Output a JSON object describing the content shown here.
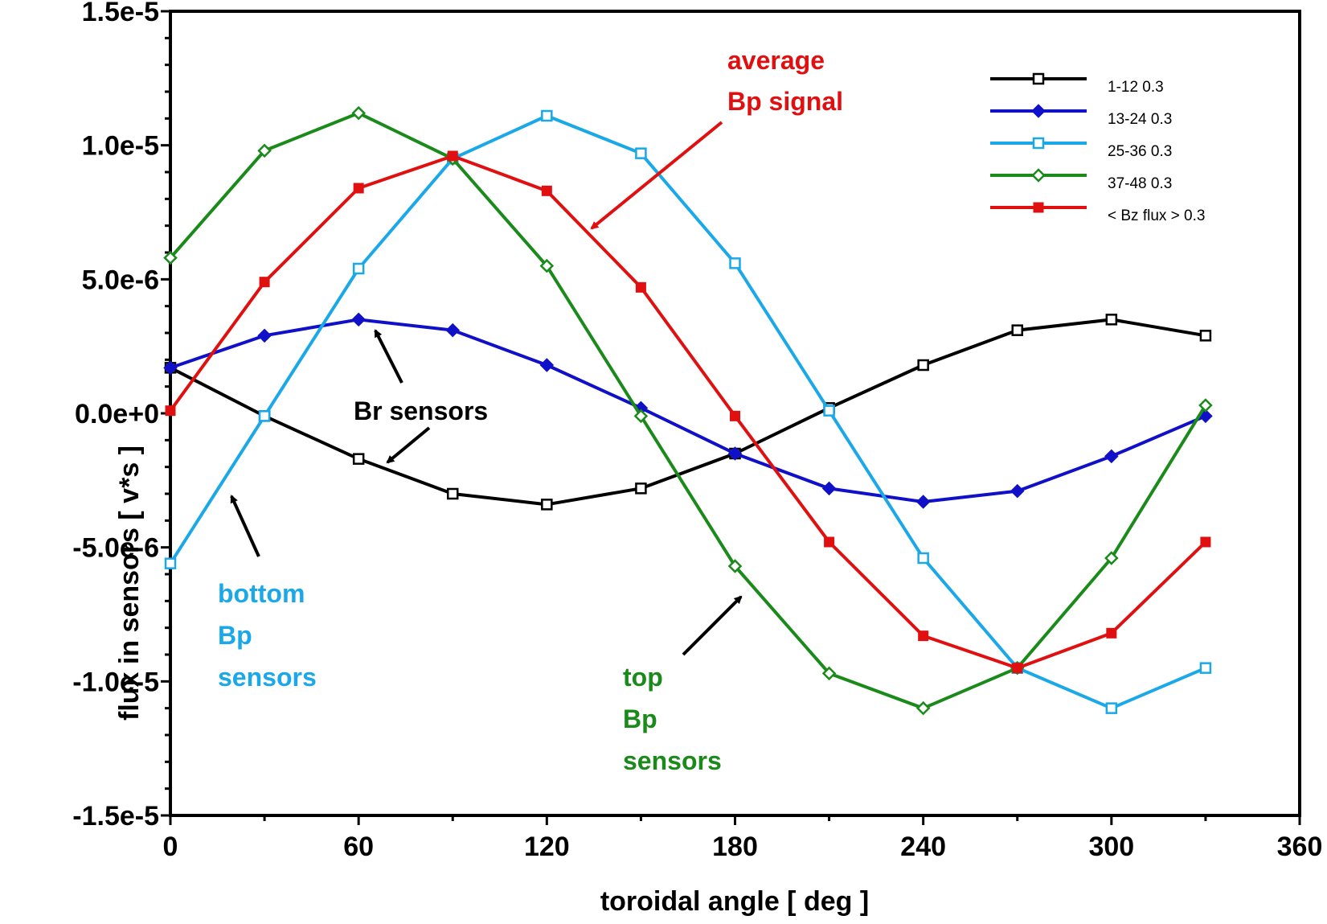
{
  "chart_data": {
    "type": "line",
    "xlabel": "toroidal angle  [ deg ]",
    "ylabel": "flux in sensors  [ v*s ]",
    "xlim": [
      0,
      360
    ],
    "ylim": [
      -1.5e-05,
      1.5e-05
    ],
    "x_ticks": [
      0,
      60,
      120,
      180,
      240,
      300,
      360
    ],
    "x_tick_labels": [
      "0",
      "60",
      "120",
      "180",
      "240",
      "300",
      "360"
    ],
    "y_ticks": [
      1.5e-05,
      1e-05,
      5e-06,
      0,
      -5e-06,
      -1e-05,
      -1.5e-05
    ],
    "y_tick_labels": [
      "1.5e-5",
      "1.0e-5",
      "5.0e-6",
      "0.0e+0",
      "-5.0e-6",
      "-1.0e-5",
      "-1.5e-5"
    ],
    "grid": false,
    "legend_position": "top-right",
    "x": [
      0,
      30,
      60,
      90,
      120,
      150,
      180,
      210,
      240,
      270,
      300,
      330
    ],
    "series": [
      {
        "name": "1-12   0.3",
        "color": "#000000",
        "marker": "open-square",
        "values": [
          1.7e-06,
          -1e-07,
          -1.7e-06,
          -3e-06,
          -3.4e-06,
          -2.8e-06,
          -1.5e-06,
          2e-07,
          1.8e-06,
          3.1e-06,
          3.5e-06,
          2.9e-06
        ]
      },
      {
        "name": "13-24   0.3",
        "color": "#1010c8",
        "marker": "filled-diamond",
        "values": [
          1.7e-06,
          2.9e-06,
          3.5e-06,
          3.1e-06,
          1.8e-06,
          2e-07,
          -1.5e-06,
          -2.8e-06,
          -3.3e-06,
          -2.9e-06,
          -1.6e-06,
          -1e-07
        ]
      },
      {
        "name": "25-36   0.3",
        "color": "#1aa8e8",
        "marker": "open-square",
        "values": [
          -5.6e-06,
          -1e-07,
          5.4e-06,
          9.5e-06,
          1.11e-05,
          9.7e-06,
          5.6e-06,
          1e-07,
          -5.4e-06,
          -9.5e-06,
          -1.1e-05,
          -9.5e-06
        ]
      },
      {
        "name": "37-48   0.3",
        "color": "#1a8a1a",
        "marker": "open-diamond",
        "values": [
          5.8e-06,
          9.8e-06,
          1.12e-05,
          9.5e-06,
          5.5e-06,
          -1e-07,
          -5.7e-06,
          -9.7e-06,
          -1.1e-05,
          -9.5e-06,
          -5.4e-06,
          3e-07
        ]
      },
      {
        "name": "< Bz flux >   0.3",
        "color": "#e01010",
        "marker": "filled-square",
        "values": [
          1e-07,
          4.9e-06,
          8.4e-06,
          9.6e-06,
          8.3e-06,
          4.7e-06,
          -1e-07,
          -4.8e-06,
          -8.3e-06,
          -9.5e-06,
          -8.2e-06,
          -4.8e-06
        ]
      }
    ],
    "annotations": [
      {
        "lines": [
          "average",
          "Bp signal"
        ],
        "color": "#e01010"
      },
      {
        "lines": [
          "Br sensors"
        ],
        "color": "#000000"
      },
      {
        "lines": [
          "bottom",
          "Bp",
          "sensors"
        ],
        "color": "#1aa8e8"
      },
      {
        "lines": [
          "top",
          "Bp",
          "sensors"
        ],
        "color": "#1a8a1a"
      }
    ]
  }
}
